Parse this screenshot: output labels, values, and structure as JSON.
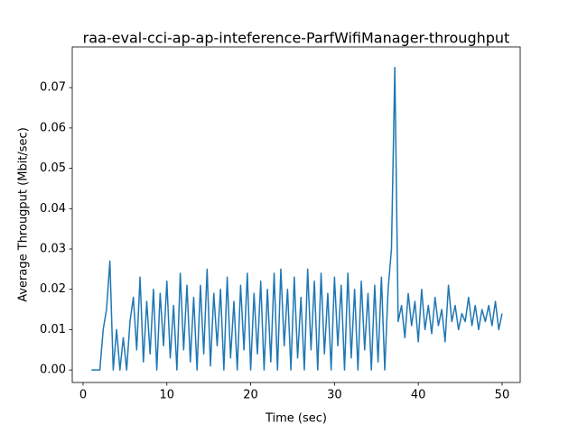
{
  "chart_data": {
    "type": "line",
    "title": "raa-eval-cci-ap-ap-inteference-ParfWifiManager-throughput",
    "x_label": "Time (sec)",
    "y_label": "Average Througput (Mbit/sec)",
    "xlim": [
      -1.29,
      52.16
    ],
    "ylim": [
      -0.0031,
      0.0801
    ],
    "xticks": [
      0,
      10,
      20,
      30,
      40,
      50
    ],
    "yticks": [
      {
        "value": 0,
        "label": "0.00"
      },
      {
        "value": 0.01,
        "label": "0.01"
      },
      {
        "value": 0.02,
        "label": "0.02"
      },
      {
        "value": 0.03,
        "label": "0.03"
      },
      {
        "value": 0.04,
        "label": "0.04"
      },
      {
        "value": 0.05,
        "label": "0.05"
      },
      {
        "value": 0.06,
        "label": "0.06"
      },
      {
        "value": 0.07,
        "label": "0.07"
      }
    ],
    "series": [
      {
        "color": "#1f77b4",
        "x": [
          1.0,
          1.5,
          2.0,
          2.4,
          2.8,
          3.2,
          3.6,
          4.0,
          4.4,
          4.8,
          5.2,
          5.6,
          6.0,
          6.4,
          6.8,
          7.2,
          7.6,
          8.0,
          8.4,
          8.8,
          9.2,
          9.6,
          10.0,
          10.4,
          10.8,
          11.2,
          11.6,
          12.0,
          12.4,
          12.8,
          13.2,
          13.6,
          14.0,
          14.4,
          14.8,
          15.2,
          15.6,
          16.0,
          16.4,
          16.8,
          17.2,
          17.6,
          18.0,
          18.4,
          18.8,
          19.2,
          19.6,
          20.0,
          20.4,
          20.8,
          21.2,
          21.6,
          22.0,
          22.4,
          22.8,
          23.2,
          23.6,
          24.0,
          24.4,
          24.8,
          25.2,
          25.6,
          26.0,
          26.4,
          26.8,
          27.2,
          27.6,
          28.0,
          28.4,
          28.8,
          29.2,
          29.6,
          30.0,
          30.4,
          30.8,
          31.2,
          31.6,
          32.0,
          32.4,
          32.8,
          33.2,
          33.6,
          34.0,
          34.4,
          34.8,
          35.2,
          35.6,
          36.0,
          36.4,
          36.8,
          37.2,
          37.6,
          38.0,
          38.4,
          38.8,
          39.2,
          39.6,
          40.0,
          40.4,
          40.8,
          41.2,
          41.6,
          42.0,
          42.4,
          42.8,
          43.2,
          43.6,
          44.0,
          44.4,
          44.8,
          45.2,
          45.6,
          46.0,
          46.4,
          46.8,
          47.2,
          47.6,
          48.0,
          48.4,
          48.8,
          49.2,
          49.6,
          50.0
        ],
        "values": [
          0,
          0,
          0,
          0.01,
          0.015,
          0.027,
          0,
          0.01,
          0,
          0.008,
          0,
          0.012,
          0.018,
          0.005,
          0.023,
          0.002,
          0.017,
          0.004,
          0.02,
          0,
          0.019,
          0.006,
          0.022,
          0.003,
          0.016,
          0,
          0.024,
          0.005,
          0.021,
          0.002,
          0.018,
          0,
          0.021,
          0.004,
          0.025,
          0.001,
          0.019,
          0.006,
          0.02,
          0,
          0.023,
          0.003,
          0.017,
          0,
          0.021,
          0.005,
          0.024,
          0,
          0.019,
          0.004,
          0.022,
          0,
          0.02,
          0.002,
          0.024,
          0,
          0.025,
          0.006,
          0.02,
          0,
          0.023,
          0.003,
          0.018,
          0,
          0.025,
          0.005,
          0.022,
          0,
          0.024,
          0.004,
          0.019,
          0,
          0.023,
          0.006,
          0.021,
          0,
          0.024,
          0.003,
          0.02,
          0,
          0.022,
          0.005,
          0.019,
          0,
          0.021,
          0.002,
          0.023,
          0,
          0.02,
          0.03,
          0.075,
          0.012,
          0.016,
          0.008,
          0.019,
          0.011,
          0.017,
          0.007,
          0.02,
          0.01,
          0.016,
          0.009,
          0.018,
          0.011,
          0.015,
          0.007,
          0.021,
          0.012,
          0.016,
          0.01,
          0.014,
          0.012,
          0.018,
          0.011,
          0.016,
          0.01,
          0.015,
          0.012,
          0.016,
          0.011,
          0.017,
          0.01,
          0.014
        ]
      }
    ]
  }
}
